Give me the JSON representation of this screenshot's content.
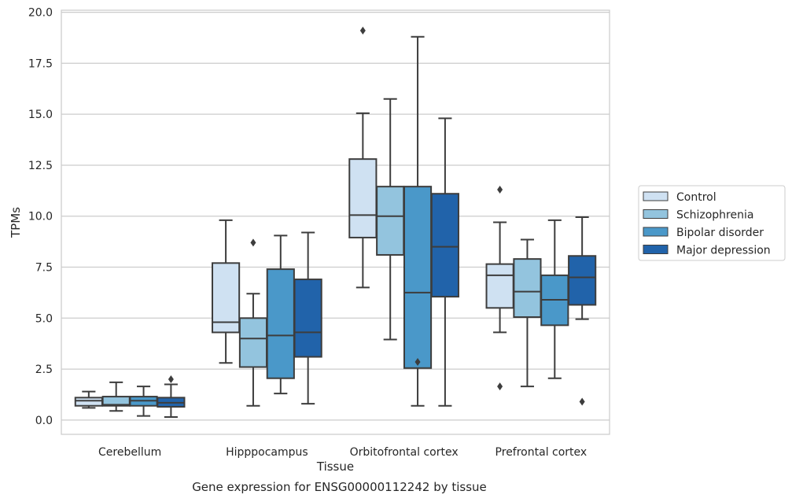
{
  "chart_data": {
    "type": "box",
    "xlabel": "Tissue",
    "ylabel": "TPMs",
    "caption": "Gene expression for ENSG00000112242 by tissue",
    "ylim": [
      -0.7,
      20.1
    ],
    "yticks": [
      "0.0",
      "2.5",
      "5.0",
      "7.5",
      "10.0",
      "12.5",
      "15.0",
      "17.5",
      "20.0"
    ],
    "grid": true,
    "legend_position": "right",
    "categories": [
      "Cerebellum",
      "Hipppocampus",
      "Orbitofrontal cortex",
      "Prefrontal cortex"
    ],
    "series": [
      {
        "name": "Control",
        "color": "#cfe1f2",
        "boxes": [
          {
            "whislo": 0.6,
            "q1": 0.7,
            "med": 0.95,
            "q3": 1.1,
            "whishi": 1.4,
            "fliers": []
          },
          {
            "whislo": 2.8,
            "q1": 4.3,
            "med": 4.8,
            "q3": 7.7,
            "whishi": 9.8,
            "fliers": []
          },
          {
            "whislo": 6.5,
            "q1": 8.95,
            "med": 10.05,
            "q3": 12.8,
            "whishi": 15.05,
            "fliers": [
              19.1
            ]
          },
          {
            "whislo": 4.3,
            "q1": 5.5,
            "med": 7.1,
            "q3": 7.65,
            "whishi": 9.7,
            "fliers": [
              11.3,
              1.65
            ]
          }
        ]
      },
      {
        "name": "Schizophrenia",
        "color": "#93c4de",
        "boxes": [
          {
            "whislo": 0.45,
            "q1": 0.7,
            "med": 0.75,
            "q3": 1.15,
            "whishi": 1.85,
            "fliers": []
          },
          {
            "whislo": 0.7,
            "q1": 2.6,
            "med": 4.0,
            "q3": 5.0,
            "whishi": 6.2,
            "fliers": [
              8.7
            ]
          },
          {
            "whislo": 3.95,
            "q1": 8.1,
            "med": 10.0,
            "q3": 11.45,
            "whishi": 15.75,
            "fliers": []
          },
          {
            "whislo": 1.65,
            "q1": 5.05,
            "med": 6.3,
            "q3": 7.9,
            "whishi": 8.85,
            "fliers": []
          }
        ]
      },
      {
        "name": "Bipolar disorder",
        "color": "#4a98c9",
        "boxes": [
          {
            "whislo": 0.2,
            "q1": 0.7,
            "med": 0.95,
            "q3": 1.15,
            "whishi": 1.65,
            "fliers": []
          },
          {
            "whislo": 1.3,
            "q1": 2.05,
            "med": 4.15,
            "q3": 7.4,
            "whishi": 9.05,
            "fliers": []
          },
          {
            "whislo": 0.7,
            "q1": 2.55,
            "med": 6.25,
            "q3": 11.45,
            "whishi": 18.8,
            "fliers": [
              2.85
            ]
          },
          {
            "whislo": 2.05,
            "q1": 4.65,
            "med": 5.9,
            "q3": 7.1,
            "whishi": 9.8,
            "fliers": []
          }
        ]
      },
      {
        "name": "Major depression",
        "color": "#2163aa",
        "boxes": [
          {
            "whislo": 0.15,
            "q1": 0.65,
            "med": 0.85,
            "q3": 1.1,
            "whishi": 1.75,
            "fliers": [
              2.0
            ]
          },
          {
            "whislo": 0.8,
            "q1": 3.1,
            "med": 4.3,
            "q3": 6.9,
            "whishi": 9.2,
            "fliers": []
          },
          {
            "whislo": 0.7,
            "q1": 6.05,
            "med": 8.5,
            "q3": 11.1,
            "whishi": 14.8,
            "fliers": []
          },
          {
            "whislo": 4.95,
            "q1": 5.65,
            "med": 7.0,
            "q3": 8.05,
            "whishi": 9.95,
            "fliers": [
              0.9
            ]
          }
        ]
      }
    ]
  }
}
